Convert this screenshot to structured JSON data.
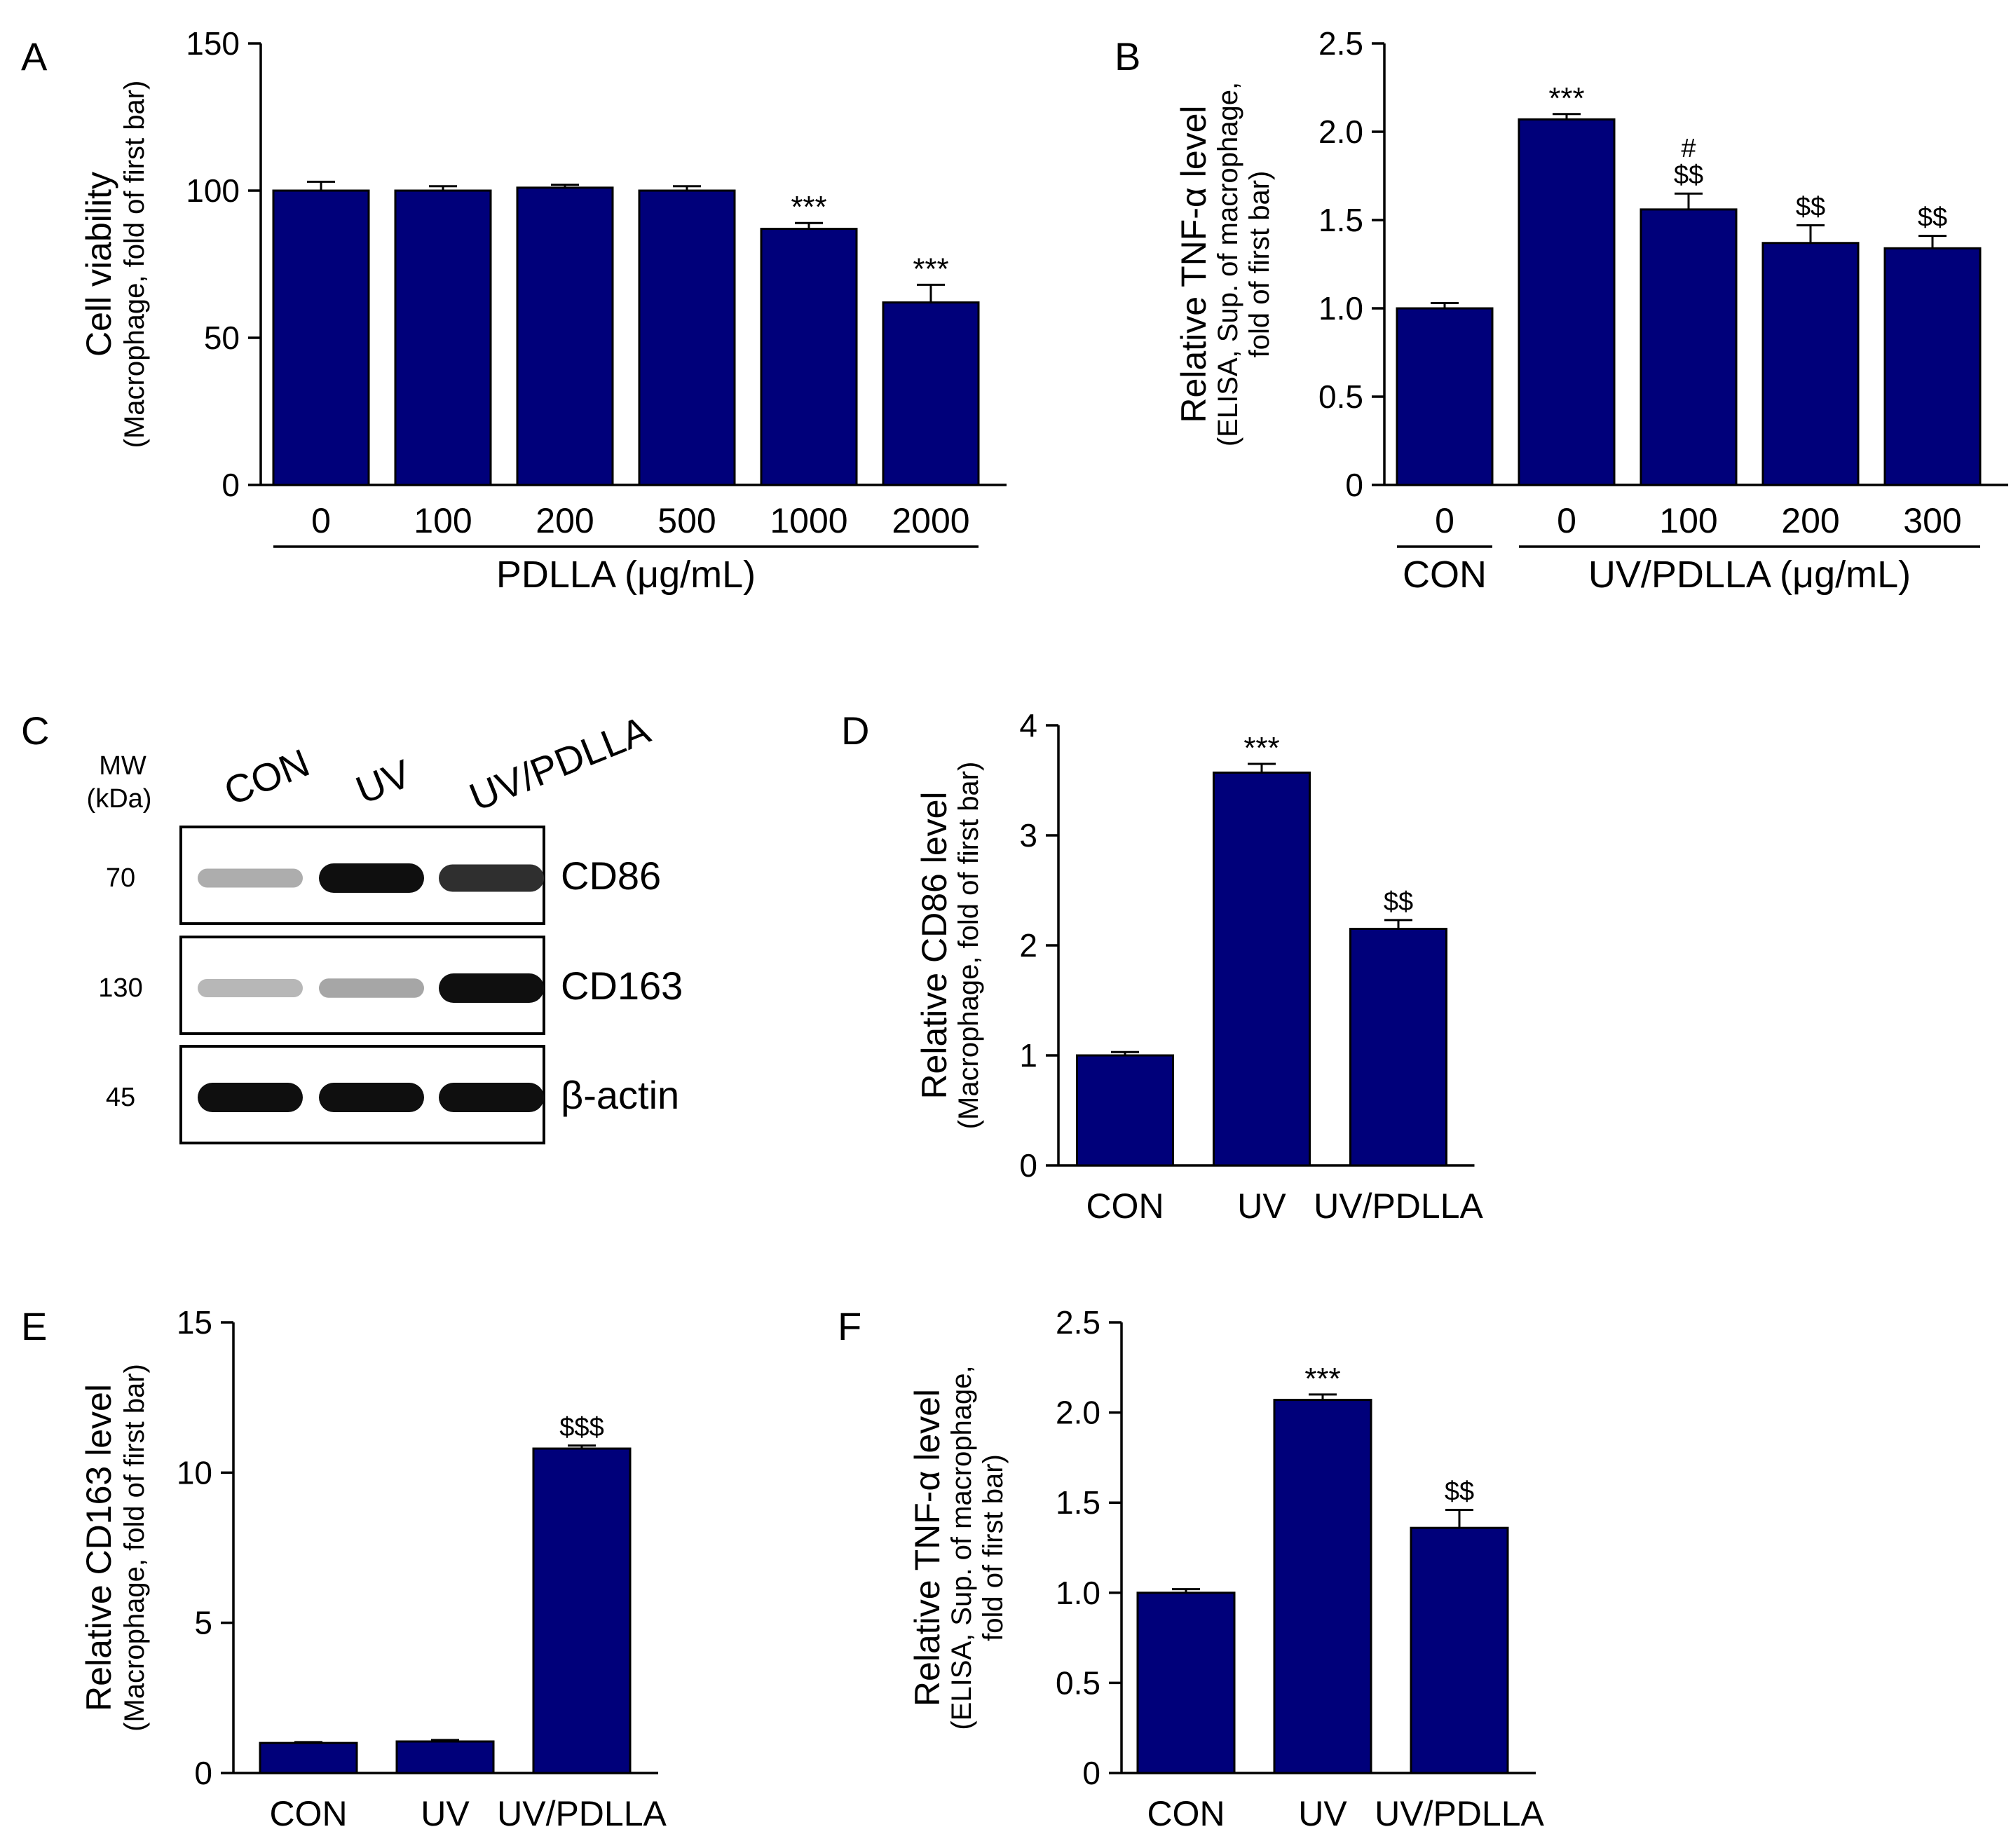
{
  "figure": {
    "bar_color": "#00007a",
    "axis_color": "#000000"
  },
  "chart_data": [
    {
      "panel": "A",
      "type": "bar",
      "ylabel_main": "Cell viability",
      "ylabel_sub": "(Macrophage, fold of first bar)",
      "categories": [
        "0",
        "100",
        "200",
        "500",
        "1000",
        "2000"
      ],
      "values": [
        100,
        100,
        101,
        100,
        87,
        62
      ],
      "errors": [
        3,
        1.5,
        1,
        1.5,
        2,
        6
      ],
      "annotations": [
        "",
        "",
        "",
        "",
        "***",
        "***"
      ],
      "ylim": [
        0,
        150
      ],
      "yticks": [
        "0",
        "50",
        "100",
        "150"
      ],
      "group_labels": [
        {
          "text": "PDLLA (μg/mL)",
          "from": 0,
          "to": 5
        }
      ]
    },
    {
      "panel": "B",
      "type": "bar",
      "ylabel_main": "Relative TNF-α level",
      "ylabel_sub1": "(ELISA, Sup. of macrophage,",
      "ylabel_sub2": "fold of first bar)",
      "categories": [
        "0",
        "0",
        "100",
        "200",
        "300"
      ],
      "values": [
        1.0,
        2.07,
        1.56,
        1.37,
        1.34
      ],
      "errors": [
        0.03,
        0.03,
        0.09,
        0.1,
        0.07
      ],
      "annotations": [
        "",
        "***",
        "$$",
        "$$",
        "$$"
      ],
      "annotations_top": [
        "",
        "",
        "#",
        "",
        ""
      ],
      "ylim": [
        0,
        2.5
      ],
      "yticks": [
        "0",
        "0.5",
        "1.0",
        "1.5",
        "2.0",
        "2.5"
      ],
      "group_labels": [
        {
          "text": "CON",
          "from": 0,
          "to": 0
        },
        {
          "text": "UV/PDLLA (μg/mL)",
          "from": 1,
          "to": 4
        }
      ]
    },
    {
      "panel": "D",
      "type": "bar",
      "ylabel_main": "Relative CD86 level",
      "ylabel_sub": "(Macrophage, fold of first bar)",
      "categories": [
        "CON",
        "UV",
        "UV/PDLLA"
      ],
      "values": [
        1.0,
        3.57,
        2.15
      ],
      "errors": [
        0.03,
        0.08,
        0.08
      ],
      "annotations": [
        "",
        "***",
        "$$"
      ],
      "ylim": [
        0,
        4
      ],
      "yticks": [
        "0",
        "1",
        "2",
        "3",
        "4"
      ]
    },
    {
      "panel": "E",
      "type": "bar",
      "ylabel_main": "Relative CD163 level",
      "ylabel_sub": "(Macrophage, fold of first bar)",
      "categories": [
        "CON",
        "UV",
        "UV/PDLLA"
      ],
      "values": [
        1.0,
        1.05,
        10.8
      ],
      "errors": [
        0.03,
        0.05,
        0.1
      ],
      "annotations": [
        "",
        "",
        "$$$"
      ],
      "ylim": [
        0,
        15
      ],
      "yticks": [
        "0",
        "5",
        "10",
        "15"
      ]
    },
    {
      "panel": "F",
      "type": "bar",
      "ylabel_main": "Relative TNF-α level",
      "ylabel_sub1": "(ELISA, Sup. of macrophage,",
      "ylabel_sub2": "fold of first bar)",
      "categories": [
        "CON",
        "UV",
        "UV/PDLLA"
      ],
      "values": [
        1.0,
        2.07,
        1.36
      ],
      "errors": [
        0.02,
        0.03,
        0.1
      ],
      "annotations": [
        "",
        "***",
        "$$"
      ],
      "ylim": [
        0,
        2.5
      ],
      "yticks": [
        "0",
        "0.5",
        "1.0",
        "1.5",
        "2.0",
        "2.5"
      ]
    }
  ],
  "blot": {
    "panel": "C",
    "mw_header1": "MW",
    "mw_header2": "(kDa)",
    "lanes": [
      "CON",
      "UV",
      "UV/PDLLA"
    ],
    "rows": [
      {
        "mw": "70",
        "protein": "CD86",
        "intensity": [
          0.25,
          1.0,
          0.85
        ]
      },
      {
        "mw": "130",
        "protein": "CD163",
        "intensity": [
          0.2,
          0.28,
          1.0
        ]
      },
      {
        "mw": "45",
        "protein": "β-actin",
        "intensity": [
          1.0,
          1.0,
          1.0
        ]
      }
    ]
  }
}
